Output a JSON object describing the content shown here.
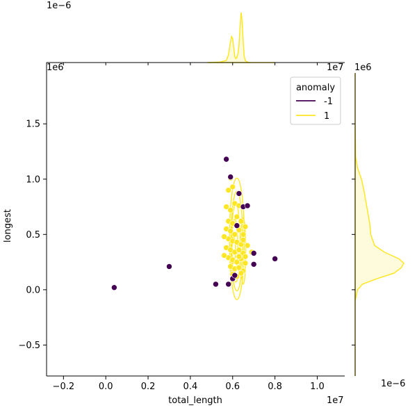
{
  "chart_data": {
    "type": "scatter",
    "subtype": "jointplot-with-kde",
    "xlabel": "total_length",
    "ylabel": "longest",
    "x_offset_text": "1e7",
    "y_offset_text": "1e6",
    "top_marginal_offset_text": "1e−6",
    "right_marginal_offset_text": "1e−6",
    "xlim": [
      -0.28,
      1.13
    ],
    "ylim": [
      -0.78,
      1.96
    ],
    "x_ticks": [
      -0.2,
      0.0,
      0.2,
      0.4,
      0.6,
      0.8,
      1.0
    ],
    "x_tick_labels": [
      "−0.2",
      "0.0",
      "0.2",
      "0.4",
      "0.6",
      "0.8",
      "1.0"
    ],
    "y_ticks": [
      -0.5,
      0.0,
      0.5,
      1.0,
      1.5
    ],
    "y_tick_labels": [
      "−0.5",
      "0.0",
      "0.5",
      "1.0",
      "1.5"
    ],
    "grid": false,
    "legend": {
      "title": "anomaly",
      "placement": "top-right",
      "entries": [
        {
          "label": "-1",
          "color": "#440154"
        },
        {
          "label": "1",
          "color": "#fde725"
        }
      ]
    },
    "colors": {
      "anomaly_neg": "#440154",
      "anomaly_pos": "#fde725",
      "kde_fill": "#fef6c4"
    },
    "series": [
      {
        "name": "-1",
        "color": "#440154",
        "points": [
          [
            0.04,
            0.02
          ],
          [
            0.3,
            0.21
          ],
          [
            0.52,
            0.05
          ],
          [
            0.58,
            0.05
          ],
          [
            0.6,
            0.1
          ],
          [
            0.61,
            0.13
          ],
          [
            0.57,
            1.18
          ],
          [
            0.59,
            1.02
          ],
          [
            0.62,
            0.58
          ],
          [
            0.63,
            0.87
          ],
          [
            0.65,
            0.75
          ],
          [
            0.67,
            0.76
          ],
          [
            0.7,
            0.33
          ],
          [
            0.7,
            0.23
          ],
          [
            0.8,
            0.28
          ]
        ]
      },
      {
        "name": "1",
        "color": "#fde725",
        "points": [
          [
            0.58,
            0.9
          ],
          [
            0.59,
            1.01
          ],
          [
            0.6,
            0.93
          ],
          [
            0.57,
            0.75
          ],
          [
            0.59,
            0.72
          ],
          [
            0.61,
            0.78
          ],
          [
            0.63,
            0.76
          ],
          [
            0.58,
            0.62
          ],
          [
            0.6,
            0.6
          ],
          [
            0.62,
            0.66
          ],
          [
            0.64,
            0.62
          ],
          [
            0.57,
            0.55
          ],
          [
            0.59,
            0.53
          ],
          [
            0.61,
            0.5
          ],
          [
            0.63,
            0.54
          ],
          [
            0.65,
            0.5
          ],
          [
            0.58,
            0.46
          ],
          [
            0.6,
            0.44
          ],
          [
            0.62,
            0.43
          ],
          [
            0.64,
            0.41
          ],
          [
            0.57,
            0.38
          ],
          [
            0.59,
            0.36
          ],
          [
            0.61,
            0.34
          ],
          [
            0.63,
            0.36
          ],
          [
            0.65,
            0.33
          ],
          [
            0.58,
            0.29
          ],
          [
            0.6,
            0.27
          ],
          [
            0.62,
            0.25
          ],
          [
            0.64,
            0.28
          ],
          [
            0.66,
            0.24
          ],
          [
            0.59,
            0.21
          ],
          [
            0.61,
            0.19
          ],
          [
            0.63,
            0.2
          ],
          [
            0.65,
            0.17
          ],
          [
            0.6,
            0.14
          ],
          [
            0.62,
            0.12
          ],
          [
            0.64,
            0.15
          ],
          [
            0.66,
            0.3
          ],
          [
            0.67,
            0.4
          ],
          [
            0.69,
            0.34
          ],
          [
            0.66,
            0.57
          ],
          [
            0.56,
            0.48
          ],
          [
            0.56,
            0.31
          ],
          [
            0.65,
            0.45
          ],
          [
            0.63,
            0.3
          ]
        ]
      }
    ],
    "kde_contours": [
      {
        "cx": 0.62,
        "cy": 0.46,
        "rx": 0.035,
        "ry": 0.55
      },
      {
        "cx": 0.62,
        "cy": 0.44,
        "rx": 0.028,
        "ry": 0.45
      },
      {
        "cx": 0.615,
        "cy": 0.42,
        "rx": 0.021,
        "ry": 0.35
      },
      {
        "cx": 0.61,
        "cy": 0.4,
        "rx": 0.014,
        "ry": 0.24
      },
      {
        "cx": 0.605,
        "cy": 0.36,
        "rx": 0.008,
        "ry": 0.12
      },
      {
        "cx": 0.65,
        "cy": 0.35,
        "rx": 0.012,
        "ry": 0.3
      }
    ],
    "top_marginal": {
      "series": "1",
      "x": [
        0.48,
        0.54,
        0.57,
        0.58,
        0.59,
        0.595,
        0.6,
        0.605,
        0.61,
        0.615,
        0.62,
        0.625,
        0.63,
        0.635,
        0.64,
        0.645,
        0.65,
        0.655,
        0.66,
        0.665,
        0.67,
        0.68,
        0.72,
        0.8
      ],
      "density": [
        0.0,
        0.01,
        0.04,
        0.15,
        0.42,
        0.52,
        0.48,
        0.3,
        0.12,
        0.08,
        0.1,
        0.18,
        0.35,
        0.7,
        1.0,
        0.82,
        0.4,
        0.12,
        0.04,
        0.02,
        0.01,
        0.0,
        0.0,
        0.0
      ]
    },
    "right_marginal": {
      "series": "1",
      "y": [
        -0.78,
        -0.1,
        0.0,
        0.05,
        0.1,
        0.15,
        0.2,
        0.24,
        0.28,
        0.34,
        0.4,
        0.5,
        0.6,
        0.7,
        0.8,
        0.9,
        1.0,
        1.1,
        1.2,
        1.5,
        1.96
      ],
      "density": [
        0.0,
        0.0,
        0.05,
        0.15,
        0.45,
        0.8,
        0.95,
        1.0,
        0.9,
        0.6,
        0.4,
        0.32,
        0.3,
        0.26,
        0.22,
        0.18,
        0.13,
        0.05,
        0.01,
        0.0,
        0.0
      ]
    }
  }
}
